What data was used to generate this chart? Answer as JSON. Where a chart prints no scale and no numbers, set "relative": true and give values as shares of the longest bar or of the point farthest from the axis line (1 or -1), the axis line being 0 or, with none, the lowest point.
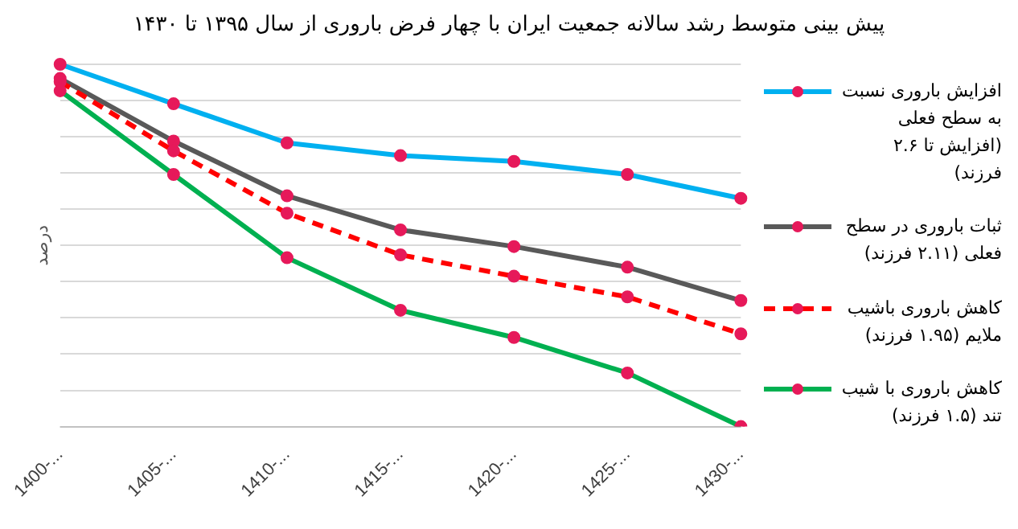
{
  "chart_data": {
    "type": "line",
    "title": "پیش بینی متوسط رشد سالانه جمعیت ایران با چهار فرض باروری از سال ۱۳۹۵ تا ۱۴۳۰",
    "ylabel": "درصد",
    "relative": true,
    "categories": [
      "1400-...",
      "1405-...",
      "1410-...",
      "1415-...",
      "1420-...",
      "1425-...",
      "1430-..."
    ],
    "series": [
      {
        "name": "افزایش باروری نسبت به سطح فعلی (افزایش تا ۲.۶ فرزند)",
        "color": "#00b0f0",
        "values": [
          1,
          0.891,
          0.783,
          0.748,
          0.732,
          0.696,
          0.63
        ]
      },
      {
        "name": "ثبات باروری در سطح فعلی (۲.۱۱ فرزند)",
        "color": "#595959",
        "values": [
          0.961,
          0.788,
          0.637,
          0.543,
          0.497,
          0.44,
          0.348
        ]
      },
      {
        "name": "کاهش باروری باشیب ملایم (۱.۹۵ فرزند)",
        "color": "#ff0000",
        "line_style": "dashed",
        "values": [
          0.952,
          0.761,
          0.589,
          0.474,
          0.415,
          0.358,
          0.256
        ]
      },
      {
        "name": "کاهش باروری با شیب تند (۱.۵ فرزند)",
        "color": "#00b050",
        "values": [
          0.927,
          0.696,
          0.466,
          0.321,
          0.246,
          0.148,
          0
        ]
      }
    ],
    "grid": "y",
    "legend": "right",
    "marker": "circle"
  }
}
